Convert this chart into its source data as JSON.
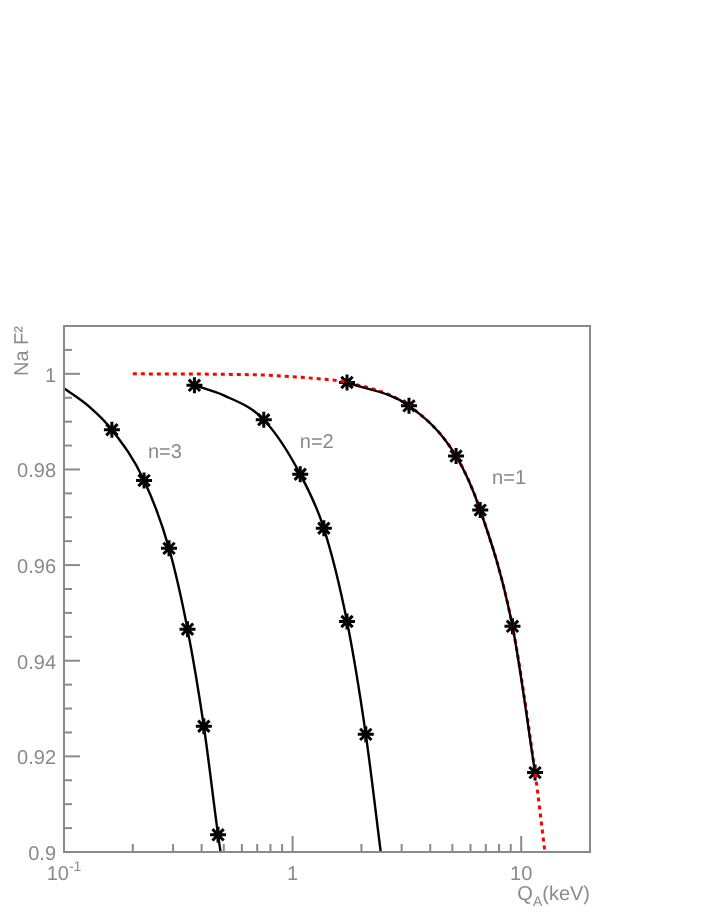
{
  "chart_data": {
    "type": "line",
    "xlabel": "Q$_{A}$(keV)",
    "ylabel": "Na F²",
    "log": "x",
    "xlim": [
      0.1,
      20
    ],
    "ylim": [
      0.9,
      1.01
    ],
    "xticks": [
      {
        "value": 0.1,
        "label": "10$^{-1}$"
      },
      {
        "value": 0.2,
        "label": null
      },
      {
        "value": 0.3,
        "label": null
      },
      {
        "value": 0.4,
        "label": null
      },
      {
        "value": 0.5,
        "label": null
      },
      {
        "value": 0.6,
        "label": null
      },
      {
        "value": 0.7,
        "label": null
      },
      {
        "value": 0.8,
        "label": null
      },
      {
        "value": 0.9,
        "label": null
      },
      1,
      {
        "value": 2,
        "label": null
      },
      {
        "value": 3,
        "label": null
      },
      {
        "value": 4,
        "label": null
      },
      {
        "value": 5,
        "label": null
      },
      {
        "value": 6,
        "label": null
      },
      {
        "value": 7,
        "label": null
      },
      {
        "value": 8,
        "label": null
      },
      {
        "value": 9,
        "label": null
      },
      10
    ],
    "yticks": [
      0.9,
      {
        "value": 0.905,
        "label": null
      },
      {
        "value": 0.91,
        "label": null
      },
      {
        "value": 0.915,
        "label": null
      },
      0.92,
      {
        "value": 0.925,
        "label": null
      },
      {
        "value": 0.93,
        "label": null
      },
      {
        "value": 0.935,
        "label": null
      },
      0.94,
      {
        "value": 0.945,
        "label": null
      },
      {
        "value": 0.95,
        "label": null
      },
      {
        "value": 0.955,
        "label": null
      },
      0.96,
      {
        "value": 0.965,
        "label": null
      },
      {
        "value": 0.97,
        "label": null
      },
      {
        "value": 0.975,
        "label": null
      },
      0.98,
      {
        "value": 0.985,
        "label": null
      },
      {
        "value": 0.99,
        "label": null
      },
      {
        "value": 0.995,
        "label": null
      },
      1,
      {
        "value": 1.005,
        "label": null
      }
    ],
    "series": [
      {
        "name": "n=3",
        "type": "line",
        "color": "#000000",
        "line_style": "solid",
        "x": [
          0.1,
          0.13,
          0.162,
          0.224,
          0.288,
          0.347,
          0.409,
          0.472,
          0.484
        ],
        "values": [
          0.997,
          0.993,
          0.9883,
          0.9777,
          0.9635,
          0.9466,
          0.9263,
          0.9036,
          0.9
        ]
      },
      {
        "name": "n=2",
        "type": "line",
        "color": "#000000",
        "line_style": "solid",
        "x": [
          0.372,
          0.5,
          0.748,
          1.08,
          1.37,
          1.73,
          2.09,
          2.43
        ],
        "values": [
          0.9976,
          0.9955,
          0.9904,
          0.979,
          0.9677,
          0.9482,
          0.9246,
          0.9
        ]
      },
      {
        "name": "n=1",
        "type": "line",
        "color": "#000000",
        "line_style": "solid",
        "x": [
          1.73,
          3.23,
          5.19,
          6.62,
          9.16,
          11.5
        ],
        "values": [
          0.9982,
          0.9933,
          0.9828,
          0.9715,
          0.9472,
          0.9166
        ]
      },
      {
        "type": "line",
        "color": "#ff0000",
        "line_style": "dotted",
        "x": [
          0.2,
          0.5,
          0.78,
          1.34,
          1.73,
          3.23,
          5.19,
          6.62,
          9.16,
          11.5,
          12.7
        ],
        "values": [
          1.0,
          0.9999,
          0.9997,
          0.9989,
          0.9982,
          0.9933,
          0.9828,
          0.9715,
          0.9472,
          0.9166,
          0.9
        ]
      },
      {
        "type": "scatter",
        "color": "#000000",
        "marker": "cross",
        "x": [
          0.162,
          0.224,
          0.288,
          0.347,
          0.409,
          0.472
        ],
        "values": [
          0.9883,
          0.9777,
          0.9635,
          0.9466,
          0.9263,
          0.9036
        ]
      },
      {
        "type": "scatter",
        "color": "#000000",
        "marker": "cross",
        "x": [
          0.372,
          0.748,
          1.08,
          1.37,
          1.73,
          2.09
        ],
        "values": [
          0.9976,
          0.9904,
          0.979,
          0.9677,
          0.9482,
          0.9246
        ]
      },
      {
        "type": "scatter",
        "color": "#000000",
        "marker": "cross",
        "x": [
          1.73,
          3.23,
          5.19,
          6.62,
          9.16,
          11.5
        ],
        "values": [
          0.9982,
          0.9933,
          0.9828,
          0.9715,
          0.9472,
          0.9166
        ]
      }
    ]
  }
}
